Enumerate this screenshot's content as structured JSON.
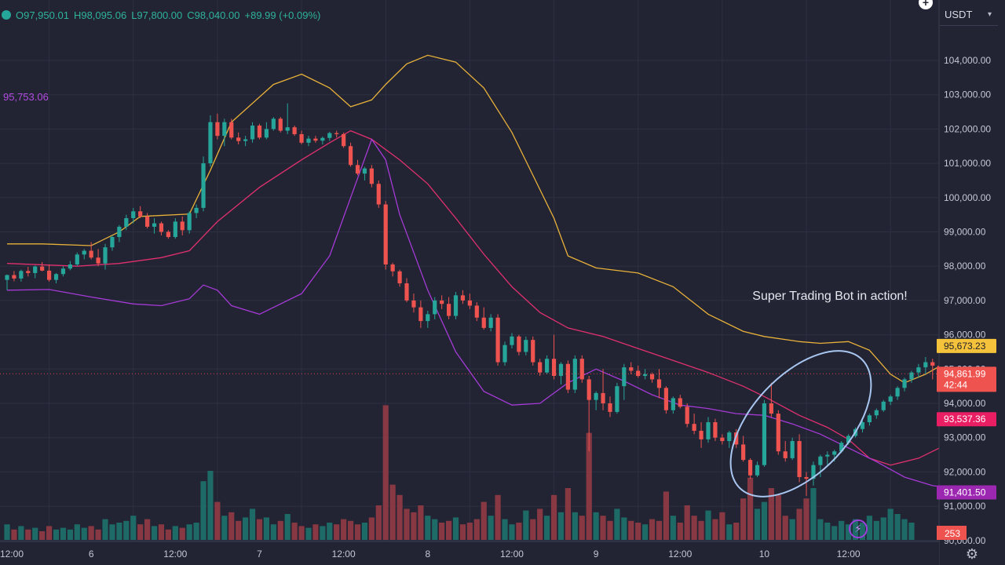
{
  "header": {
    "open": "O97,950.01",
    "high": "H98,095.06",
    "low": "L97,800.00",
    "close": "C98,040.00",
    "change": "+89.99 (+0.09%)"
  },
  "currency": "USDT",
  "indicator_label": "95,753.06",
  "annotation": "Super Trading Bot in action!",
  "price_ticks": [
    "104,000.00",
    "103,000.00",
    "102,000.00",
    "101,000.00",
    "100,000.00",
    "99,000.00",
    "98,000.00",
    "97,000.00",
    "96,000.00",
    "95,000.00",
    "94,000.00",
    "93,000.00",
    "92,000.00",
    "91,000.00",
    "90,000.00"
  ],
  "time_ticks": [
    {
      "label": "12:00",
      "slot": 0
    },
    {
      "label": "6",
      "slot": 12
    },
    {
      "label": "12:00",
      "slot": 24
    },
    {
      "label": "7",
      "slot": 36
    },
    {
      "label": "12:00",
      "slot": 48
    },
    {
      "label": "8",
      "slot": 60
    },
    {
      "label": "12:00",
      "slot": 72
    },
    {
      "label": "9",
      "slot": 84
    },
    {
      "label": "12:00",
      "slot": 96
    },
    {
      "label": "10",
      "slot": 108
    },
    {
      "label": "12:00",
      "slot": 120
    }
  ],
  "price_badges": [
    {
      "key": "upper",
      "text": "95,673.23",
      "value": 95673.23,
      "bg": "#f5c33b",
      "fg": "#1e1e28"
    },
    {
      "key": "last",
      "text": "94,861.99",
      "sub": "42:44",
      "value": 94861.99,
      "bg": "#ef5350",
      "fg": "#ffffff"
    },
    {
      "key": "middle",
      "text": "93,537.36",
      "value": 93537.36,
      "bg": "#e91e63",
      "fg": "#ffffff"
    },
    {
      "key": "lower",
      "text": "91,401.50",
      "value": 91401.5,
      "bg": "#9c27b0",
      "fg": "#ffffff"
    }
  ],
  "volume_badge": {
    "text": "253",
    "bg": "#ef5350",
    "fg": "#ffffff"
  },
  "colors": {
    "up": "#26a69a",
    "down": "#ef5350",
    "upper_band": "#e8b13a",
    "middle_band": "#e0306e",
    "lower_band": "#a53ad6",
    "grid": "#2c3042",
    "background": "#222433",
    "circle": "#a8c6f0"
  },
  "chart_data": {
    "type": "candlestick",
    "ylim": [
      90000,
      104800
    ],
    "legend": "none",
    "grid": true,
    "candles": [
      [
        97600,
        97760,
        97300,
        97740
      ],
      [
        97740,
        97860,
        97560,
        97640
      ],
      [
        97640,
        97900,
        97550,
        97860
      ],
      [
        97860,
        97980,
        97700,
        97800
      ],
      [
        97800,
        98020,
        97650,
        97990
      ],
      [
        97990,
        98120,
        97850,
        97870
      ],
      [
        97870,
        98050,
        97550,
        97600
      ],
      [
        97600,
        97800,
        97500,
        97770
      ],
      [
        97770,
        98000,
        97700,
        97930
      ],
      [
        97930,
        98150,
        97880,
        98050
      ],
      [
        98050,
        98400,
        98000,
        98340
      ],
      [
        98340,
        98500,
        98200,
        98450
      ],
      [
        98450,
        98700,
        98200,
        98250
      ],
      [
        98250,
        98500,
        98000,
        98080
      ],
      [
        98080,
        98650,
        97900,
        98550
      ],
      [
        98550,
        98900,
        98450,
        98850
      ],
      [
        98850,
        99200,
        98700,
        99150
      ],
      [
        99150,
        99500,
        99050,
        99400
      ],
      [
        99400,
        99700,
        99250,
        99600
      ],
      [
        99600,
        99750,
        99400,
        99450
      ],
      [
        99450,
        99550,
        99100,
        99150
      ],
      [
        99150,
        99400,
        98950,
        99250
      ],
      [
        99250,
        99300,
        98900,
        99000
      ],
      [
        99000,
        99050,
        98800,
        98850
      ],
      [
        98850,
        99400,
        98800,
        99300
      ],
      [
        99300,
        99450,
        98900,
        99050
      ],
      [
        99050,
        99600,
        98950,
        99550
      ],
      [
        99550,
        99800,
        99400,
        99700
      ],
      [
        99700,
        101200,
        99600,
        101000
      ],
      [
        101000,
        102400,
        100900,
        102200
      ],
      [
        102200,
        102450,
        101700,
        101800
      ],
      [
        101800,
        102300,
        101500,
        102200
      ],
      [
        102200,
        102300,
        101700,
        101750
      ],
      [
        101750,
        101900,
        101550,
        101650
      ],
      [
        101650,
        101800,
        101500,
        101700
      ],
      [
        101700,
        102200,
        101600,
        102100
      ],
      [
        102100,
        102150,
        101700,
        101750
      ],
      [
        101750,
        102200,
        101700,
        102000
      ],
      [
        102000,
        102350,
        101950,
        102300
      ],
      [
        102300,
        102350,
        101900,
        101950
      ],
      [
        101950,
        102750,
        101850,
        102050
      ],
      [
        102050,
        102100,
        101800,
        101850
      ],
      [
        101850,
        101950,
        101550,
        101600
      ],
      [
        101600,
        101800,
        101500,
        101720
      ],
      [
        101720,
        101800,
        101600,
        101660
      ],
      [
        101660,
        101780,
        101550,
        101740
      ],
      [
        101740,
        101920,
        101650,
        101880
      ],
      [
        101880,
        101950,
        101750,
        101850
      ],
      [
        101850,
        101900,
        101450,
        101500
      ],
      [
        101500,
        101600,
        100900,
        100950
      ],
      [
        100950,
        101100,
        100650,
        100700
      ],
      [
        100700,
        100900,
        100500,
        100850
      ],
      [
        100850,
        100950,
        100300,
        100400
      ],
      [
        100400,
        100500,
        99700,
        99800
      ],
      [
        99800,
        99900,
        97900,
        98050
      ],
      [
        98050,
        98100,
        97700,
        97850
      ],
      [
        97850,
        97900,
        97400,
        97500
      ],
      [
        97500,
        97650,
        96950,
        97000
      ],
      [
        97000,
        97200,
        96650,
        96800
      ],
      [
        96800,
        97000,
        96200,
        96400
      ],
      [
        96400,
        96700,
        96200,
        96600
      ],
      [
        96600,
        97100,
        96450,
        97000
      ],
      [
        97000,
        97150,
        96750,
        96900
      ],
      [
        96900,
        97100,
        96450,
        96550
      ],
      [
        96550,
        97250,
        96450,
        97150
      ],
      [
        97150,
        97300,
        96900,
        97000
      ],
      [
        97000,
        97200,
        96750,
        96850
      ],
      [
        96850,
        96950,
        96400,
        96500
      ],
      [
        96500,
        96800,
        96150,
        96200
      ],
      [
        96200,
        96600,
        96100,
        96500
      ],
      [
        96500,
        96600,
        95100,
        95200
      ],
      [
        95200,
        95800,
        95100,
        95700
      ],
      [
        95700,
        96050,
        95600,
        95950
      ],
      [
        95950,
        96000,
        95400,
        95500
      ],
      [
        95500,
        95950,
        95400,
        95850
      ],
      [
        95850,
        95950,
        95100,
        95200
      ],
      [
        95200,
        95300,
        94800,
        94900
      ],
      [
        94900,
        95400,
        94850,
        95300
      ],
      [
        95300,
        96000,
        94700,
        94800
      ],
      [
        94800,
        95200,
        94550,
        95150
      ],
      [
        95150,
        95250,
        94300,
        94400
      ],
      [
        94400,
        95400,
        94300,
        95300
      ],
      [
        95300,
        95400,
        94600,
        94700
      ],
      [
        94700,
        94800,
        92600,
        94100
      ],
      [
        94100,
        94350,
        93800,
        94300
      ],
      [
        94300,
        95000,
        93800,
        94000
      ],
      [
        94000,
        94200,
        93600,
        93750
      ],
      [
        93750,
        94600,
        93700,
        94500
      ],
      [
        94500,
        95150,
        94100,
        95050
      ],
      [
        95050,
        95200,
        94850,
        94950
      ],
      [
        94950,
        95100,
        94750,
        94800
      ],
      [
        94800,
        95000,
        94700,
        94850
      ],
      [
        94850,
        94900,
        94600,
        94700
      ],
      [
        94700,
        95000,
        94150,
        94450
      ],
      [
        94450,
        94500,
        93700,
        93800
      ],
      [
        93800,
        94200,
        93700,
        94150
      ],
      [
        94150,
        94250,
        93850,
        93900
      ],
      [
        93900,
        94000,
        93300,
        93400
      ],
      [
        93400,
        93700,
        93100,
        93200
      ],
      [
        93200,
        93450,
        92700,
        92950
      ],
      [
        92950,
        93600,
        92850,
        93450
      ],
      [
        93450,
        93550,
        92900,
        93000
      ],
      [
        93000,
        93100,
        92800,
        92900
      ],
      [
        92900,
        93200,
        92700,
        93150
      ],
      [
        93150,
        93250,
        92700,
        92800
      ],
      [
        92800,
        93050,
        92300,
        92350
      ],
      [
        92350,
        92400,
        91800,
        91900
      ],
      [
        91900,
        92300,
        91850,
        92200
      ],
      [
        92200,
        94100,
        92150,
        94000
      ],
      [
        94000,
        94600,
        93600,
        93700
      ],
      [
        93700,
        93800,
        92500,
        92600
      ],
      [
        92600,
        92900,
        92300,
        92400
      ],
      [
        92400,
        93000,
        92350,
        92900
      ],
      [
        92900,
        93100,
        91700,
        91850
      ],
      [
        91850,
        92000,
        91300,
        91800
      ],
      [
        91800,
        92300,
        91600,
        92200
      ],
      [
        92200,
        92500,
        91850,
        92450
      ],
      [
        92450,
        92600,
        92200,
        92500
      ],
      [
        92500,
        92650,
        92300,
        92600
      ],
      [
        92600,
        92900,
        92550,
        92850
      ],
      [
        92850,
        93100,
        92800,
        93050
      ],
      [
        93050,
        93300,
        93000,
        93250
      ],
      [
        93250,
        93500,
        93150,
        93450
      ],
      [
        93450,
        93700,
        93350,
        93650
      ],
      [
        93650,
        93850,
        93550,
        93800
      ],
      [
        93800,
        94100,
        93750,
        94050
      ],
      [
        94050,
        94250,
        93950,
        94200
      ],
      [
        94200,
        94500,
        94100,
        94450
      ],
      [
        94450,
        94750,
        94350,
        94700
      ],
      [
        94700,
        94950,
        94600,
        94900
      ],
      [
        94900,
        95150,
        94750,
        95050
      ],
      [
        95050,
        95350,
        94850,
        95200
      ],
      [
        95200,
        95300,
        94700,
        95100
      ],
      [
        95100,
        95150,
        94800,
        94860
      ]
    ],
    "volumes": [
      9,
      6,
      8,
      6,
      7,
      5,
      8,
      6,
      7,
      6,
      9,
      7,
      8,
      6,
      12,
      9,
      10,
      11,
      14,
      9,
      12,
      8,
      9,
      6,
      8,
      7,
      9,
      10,
      34,
      40,
      22,
      14,
      16,
      11,
      13,
      18,
      12,
      13,
      9,
      11,
      15,
      10,
      8,
      7,
      9,
      8,
      10,
      9,
      12,
      11,
      9,
      10,
      13,
      20,
      78,
      32,
      26,
      18,
      16,
      20,
      14,
      12,
      10,
      11,
      13,
      9,
      10,
      12,
      22,
      14,
      26,
      12,
      9,
      10,
      17,
      12,
      18,
      14,
      26,
      16,
      30,
      16,
      14,
      62,
      16,
      14,
      11,
      18,
      13,
      11,
      10,
      9,
      12,
      11,
      28,
      14,
      10,
      20,
      14,
      11,
      17,
      12,
      16,
      9,
      10,
      24,
      36,
      18,
      22,
      30,
      26,
      14,
      12,
      18,
      24,
      30,
      12,
      10,
      8,
      11,
      9,
      12,
      10,
      14,
      11,
      13,
      18,
      15,
      12,
      10
    ],
    "bands": {
      "upper": [
        [
          0,
          98650
        ],
        [
          5,
          98650
        ],
        [
          12,
          98600
        ],
        [
          16,
          99000
        ],
        [
          19,
          99450
        ],
        [
          26,
          99520
        ],
        [
          29,
          100800
        ],
        [
          32,
          102200
        ],
        [
          38,
          103300
        ],
        [
          42,
          103600
        ],
        [
          46,
          103200
        ],
        [
          49,
          102650
        ],
        [
          52,
          102850
        ],
        [
          54,
          103300
        ],
        [
          57,
          103900
        ],
        [
          60,
          104150
        ],
        [
          64,
          103950
        ],
        [
          68,
          103200
        ],
        [
          72,
          101900
        ],
        [
          75,
          100650
        ],
        [
          78,
          99400
        ],
        [
          80,
          98300
        ],
        [
          84,
          97950
        ],
        [
          90,
          97800
        ],
        [
          95,
          97400
        ],
        [
          100,
          96600
        ],
        [
          105,
          96100
        ],
        [
          108,
          95950
        ],
        [
          113,
          95800
        ],
        [
          116,
          95750
        ],
        [
          120,
          95800
        ],
        [
          123,
          95550
        ],
        [
          126,
          94850
        ],
        [
          128,
          94600
        ],
        [
          131,
          94850
        ],
        [
          134,
          95200
        ],
        [
          138,
          95700
        ],
        [
          141,
          95900
        ]
      ],
      "middle": [
        [
          0,
          98080
        ],
        [
          10,
          98000
        ],
        [
          16,
          98080
        ],
        [
          22,
          98250
        ],
        [
          26,
          98450
        ],
        [
          30,
          99300
        ],
        [
          36,
          100300
        ],
        [
          42,
          101100
        ],
        [
          46,
          101600
        ],
        [
          49,
          101950
        ],
        [
          52,
          101700
        ],
        [
          56,
          101100
        ],
        [
          60,
          100400
        ],
        [
          64,
          99400
        ],
        [
          68,
          98350
        ],
        [
          72,
          97400
        ],
        [
          76,
          96650
        ],
        [
          80,
          96200
        ],
        [
          85,
          95950
        ],
        [
          90,
          95600
        ],
        [
          95,
          95250
        ],
        [
          100,
          94900
        ],
        [
          105,
          94500
        ],
        [
          108,
          94200
        ],
        [
          113,
          93650
        ],
        [
          117,
          93300
        ],
        [
          120,
          92950
        ],
        [
          123,
          92400
        ],
        [
          126,
          92200
        ],
        [
          130,
          92400
        ],
        [
          134,
          92800
        ],
        [
          138,
          93200
        ],
        [
          141,
          93500
        ]
      ],
      "lower": [
        [
          0,
          97300
        ],
        [
          6,
          97320
        ],
        [
          12,
          97100
        ],
        [
          18,
          96900
        ],
        [
          22,
          96850
        ],
        [
          26,
          97050
        ],
        [
          28,
          97450
        ],
        [
          30,
          97300
        ],
        [
          32,
          96850
        ],
        [
          36,
          96600
        ],
        [
          42,
          97200
        ],
        [
          46,
          98300
        ],
        [
          49,
          100000
        ],
        [
          52,
          101700
        ],
        [
          54,
          101100
        ],
        [
          56,
          99500
        ],
        [
          60,
          97300
        ],
        [
          64,
          95500
        ],
        [
          68,
          94350
        ],
        [
          72,
          93950
        ],
        [
          76,
          94000
        ],
        [
          80,
          94600
        ],
        [
          84,
          95000
        ],
        [
          88,
          94650
        ],
        [
          92,
          94250
        ],
        [
          96,
          93950
        ],
        [
          100,
          93850
        ],
        [
          104,
          93700
        ],
        [
          108,
          93650
        ],
        [
          112,
          93400
        ],
        [
          116,
          93100
        ],
        [
          120,
          92700
        ],
        [
          124,
          92300
        ],
        [
          128,
          91850
        ],
        [
          132,
          91600
        ],
        [
          136,
          91500
        ],
        [
          141,
          91400
        ]
      ]
    }
  }
}
